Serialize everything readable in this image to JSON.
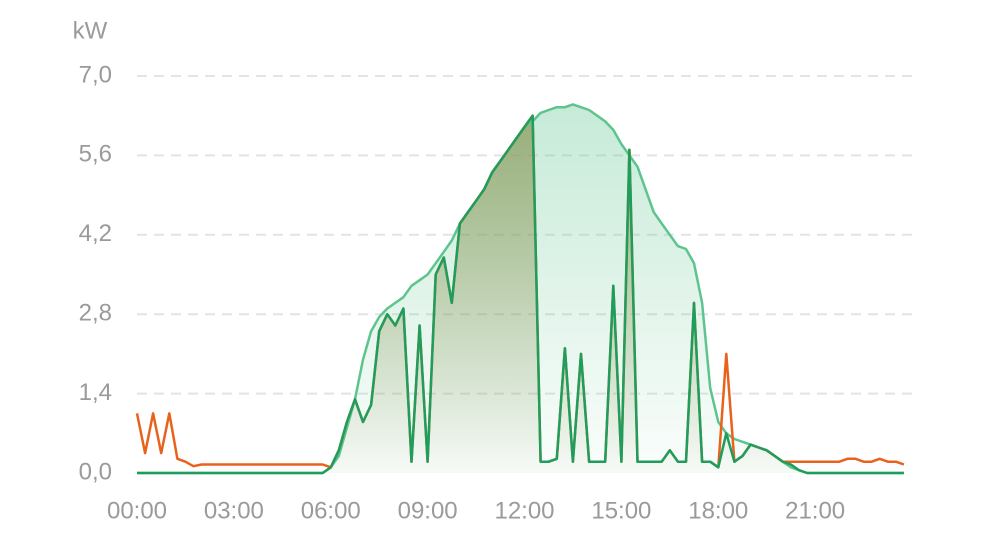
{
  "chart_data": {
    "type": "line",
    "y_unit": "kW",
    "xlim": [
      0,
      24
    ],
    "ylim": [
      0,
      7
    ],
    "xticks": [
      {
        "value": 0,
        "label": "00:00"
      },
      {
        "value": 3,
        "label": "03:00"
      },
      {
        "value": 6,
        "label": "06:00"
      },
      {
        "value": 9,
        "label": "09:00"
      },
      {
        "value": 12,
        "label": "12:00"
      },
      {
        "value": 15,
        "label": "15:00"
      },
      {
        "value": 18,
        "label": "18:00"
      },
      {
        "value": 21,
        "label": "21:00"
      }
    ],
    "yticks": [
      {
        "value": 0,
        "label": "0,0"
      },
      {
        "value": 1.4,
        "label": "1,4"
      },
      {
        "value": 2.8,
        "label": "2,8"
      },
      {
        "value": 4.2,
        "label": "4,2"
      },
      {
        "value": 5.6,
        "label": "5,6"
      },
      {
        "value": 7,
        "label": "7,0"
      }
    ],
    "grid": true,
    "x": [
      0,
      0.25,
      0.5,
      0.75,
      1,
      1.25,
      1.5,
      1.75,
      2,
      2.25,
      2.5,
      2.75,
      3,
      3.25,
      3.5,
      3.75,
      4,
      4.25,
      4.5,
      4.75,
      5,
      5.25,
      5.5,
      5.75,
      6,
      6.25,
      6.5,
      6.75,
      7,
      7.25,
      7.5,
      7.75,
      8,
      8.25,
      8.5,
      8.75,
      9,
      9.25,
      9.5,
      9.75,
      10,
      10.25,
      10.5,
      10.75,
      11,
      11.25,
      11.5,
      11.75,
      12,
      12.25,
      12.5,
      12.75,
      13,
      13.25,
      13.5,
      13.75,
      14,
      14.25,
      14.5,
      14.75,
      15,
      15.25,
      15.5,
      15.75,
      16,
      16.25,
      16.5,
      16.75,
      17,
      17.25,
      17.5,
      17.75,
      18,
      18.25,
      18.5,
      18.75,
      19,
      19.25,
      19.5,
      19.75,
      20,
      20.25,
      20.5,
      20.75,
      21,
      21.25,
      21.5,
      21.75,
      22,
      22.25,
      22.5,
      22.75,
      23,
      23.25,
      23.5,
      23.75
    ],
    "series": [
      {
        "color": "#5ec48e",
        "area": true,
        "values": [
          0,
          0,
          0,
          0,
          0,
          0,
          0,
          0,
          0,
          0,
          0,
          0,
          0,
          0,
          0,
          0,
          0,
          0,
          0,
          0,
          0,
          0,
          0,
          0,
          0.1,
          0.3,
          0.8,
          1.3,
          2.0,
          2.5,
          2.75,
          2.9,
          3.0,
          3.1,
          3.3,
          3.4,
          3.5,
          3.7,
          3.9,
          4.1,
          4.4,
          4.6,
          4.8,
          5.0,
          5.3,
          5.5,
          5.7,
          5.9,
          6.1,
          6.2,
          6.35,
          6.4,
          6.45,
          6.45,
          6.5,
          6.45,
          6.4,
          6.3,
          6.2,
          6.05,
          5.8,
          5.6,
          5.4,
          5.0,
          4.6,
          4.4,
          4.2,
          4.0,
          3.95,
          3.7,
          3.0,
          1.5,
          0.9,
          0.7,
          0.6,
          0.55,
          0.5,
          0.45,
          0.4,
          0.3,
          0.2,
          0.1,
          0.05,
          0,
          0,
          0,
          0,
          0,
          0,
          0,
          0,
          0,
          0,
          0,
          0,
          0
        ]
      },
      {
        "color": "#e8621c",
        "area": false,
        "values": [
          1.05,
          0.35,
          1.05,
          0.35,
          1.05,
          0.25,
          0.2,
          0.12,
          0.15,
          0.15,
          0.15,
          0.15,
          0.15,
          0.15,
          0.15,
          0.15,
          0.15,
          0.15,
          0.15,
          0.15,
          0.15,
          0.15,
          0.15,
          0.15,
          0.1,
          0.4,
          0.9,
          1.3,
          0.9,
          1.2,
          2.5,
          2.8,
          2.6,
          2.9,
          0.2,
          2.6,
          0.2,
          3.5,
          3.8,
          3.0,
          4.4,
          4.6,
          4.8,
          5.0,
          5.3,
          5.5,
          5.7,
          5.9,
          6.1,
          6.3,
          0.2,
          0.2,
          0.25,
          2.2,
          0.2,
          2.1,
          0.2,
          0.2,
          0.2,
          3.3,
          0.2,
          5.7,
          0.2,
          0.2,
          0.2,
          0.2,
          0.4,
          0.2,
          0.2,
          3.0,
          0.2,
          0.2,
          0.1,
          2.1,
          0.2,
          0.3,
          0.5,
          0.45,
          0.4,
          0.3,
          0.2,
          0.2,
          0.2,
          0.2,
          0.2,
          0.2,
          0.2,
          0.2,
          0.25,
          0.25,
          0.2,
          0.2,
          0.25,
          0.2,
          0.2,
          0.15
        ]
      },
      {
        "color": "#1f9d5c",
        "area": true,
        "areaColor": "#8a9a5b",
        "values": [
          0,
          0,
          0,
          0,
          0,
          0,
          0,
          0,
          0,
          0,
          0,
          0,
          0,
          0,
          0,
          0,
          0,
          0,
          0,
          0,
          0,
          0,
          0,
          0,
          0.1,
          0.4,
          0.9,
          1.3,
          0.9,
          1.2,
          2.5,
          2.8,
          2.6,
          2.9,
          0.2,
          2.6,
          0.2,
          3.5,
          3.8,
          3.0,
          4.4,
          4.6,
          4.8,
          5.0,
          5.3,
          5.5,
          5.7,
          5.9,
          6.1,
          6.3,
          0.2,
          0.2,
          0.25,
          2.2,
          0.2,
          2.1,
          0.2,
          0.2,
          0.2,
          3.3,
          0.2,
          5.7,
          0.2,
          0.2,
          0.2,
          0.2,
          0.4,
          0.2,
          0.2,
          3.0,
          0.2,
          0.2,
          0.1,
          0.7,
          0.2,
          0.3,
          0.5,
          0.45,
          0.4,
          0.3,
          0.2,
          0.15,
          0.05,
          0,
          0,
          0,
          0,
          0,
          0,
          0,
          0,
          0,
          0,
          0,
          0,
          0
        ]
      }
    ]
  }
}
